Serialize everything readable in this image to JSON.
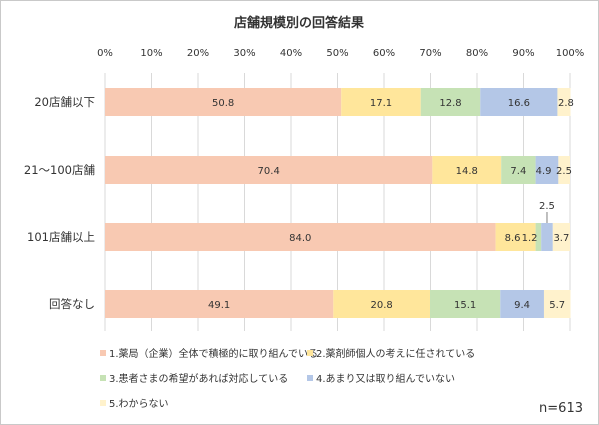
{
  "chart_data": {
    "type": "bar",
    "orientation": "horizontal",
    "stacked": true,
    "title": "店舗規模別の回答結果",
    "x_ticks": [
      "0%",
      "10%",
      "20%",
      "30%",
      "40%",
      "50%",
      "60%",
      "70%",
      "80%",
      "90%",
      "100%"
    ],
    "xlim": [
      0,
      100
    ],
    "grid": true,
    "legend_position": "bottom",
    "categories": [
      "20店舗以下",
      "21～100店舗",
      "101店舗以上",
      "回答なし"
    ],
    "series": [
      {
        "name": "1.薬局（企業）全体で積極的に取り組んでいる",
        "color": "#f8c9b2",
        "values": [
          50.8,
          70.4,
          84.0,
          49.1
        ],
        "labels": [
          "50.8",
          "70.4",
          "84.0",
          "49.1"
        ]
      },
      {
        "name": "2.薬剤師個人の考えに任されている",
        "color": "#ffe69b",
        "values": [
          17.1,
          14.8,
          8.6,
          20.8
        ],
        "labels": [
          "17.1",
          "14.8",
          "8.6",
          "20.8"
        ]
      },
      {
        "name": "3.患者さまの希望があれば対応している",
        "color": "#c6e2b5",
        "values": [
          12.8,
          7.4,
          1.2,
          15.1
        ],
        "labels": [
          "12.8",
          "7.4",
          "1.2",
          "15.1"
        ]
      },
      {
        "name": "4.あまり又は取り組んでいない",
        "color": "#b4c7e7",
        "values": [
          16.6,
          4.9,
          2.5,
          9.4
        ],
        "labels": [
          "16.6",
          "4.9",
          "2.5",
          "9.4"
        ]
      },
      {
        "name": "5.わからない",
        "color": "#fff2cc",
        "values": [
          2.8,
          2.5,
          3.7,
          5.7
        ],
        "labels": [
          "2.8",
          "2.5",
          "3.7",
          "5.7"
        ]
      }
    ],
    "note": "n=613"
  }
}
